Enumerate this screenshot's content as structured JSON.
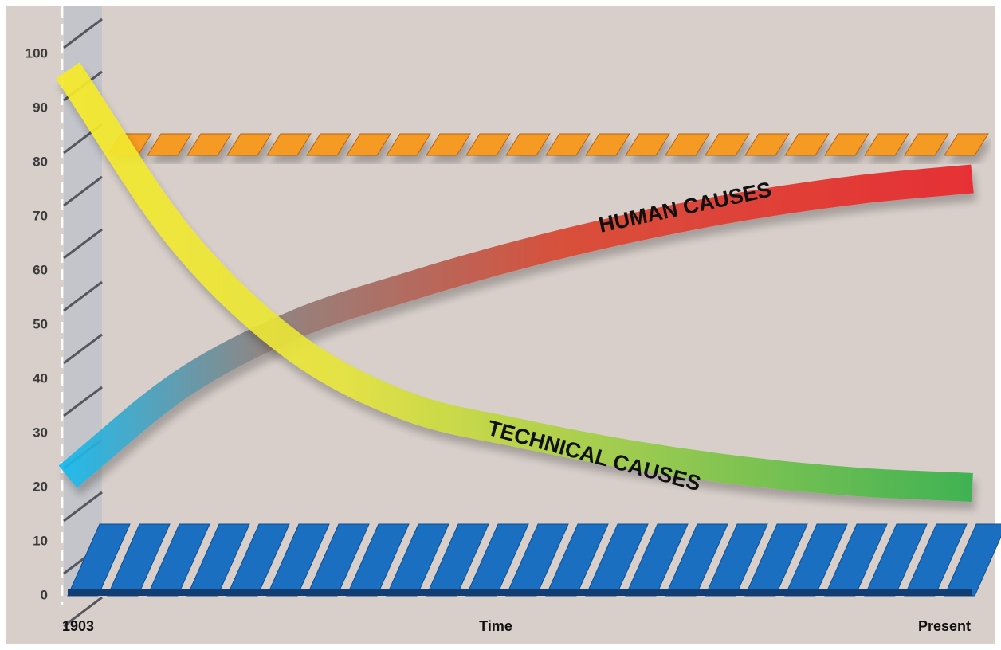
{
  "chart_data": {
    "type": "line",
    "categories": [
      "1903",
      null,
      null,
      null,
      null,
      null,
      null,
      null,
      "Present"
    ],
    "x_label": "Time",
    "series": [
      {
        "name": "HUMAN CAUSES",
        "color": "#e8242a",
        "values": [
          22,
          39,
          50,
          57,
          63,
          68,
          72,
          75,
          77
        ]
      },
      {
        "name": "TECHNICAL CAUSES",
        "color": "#33b04a",
        "values": [
          97,
          66,
          46,
          35,
          30,
          26,
          23,
          21,
          20
        ]
      }
    ],
    "ylim": [
      0,
      100
    ],
    "yticks": [
      0,
      10,
      20,
      30,
      40,
      50,
      60,
      70,
      80,
      90,
      100
    ]
  }
}
